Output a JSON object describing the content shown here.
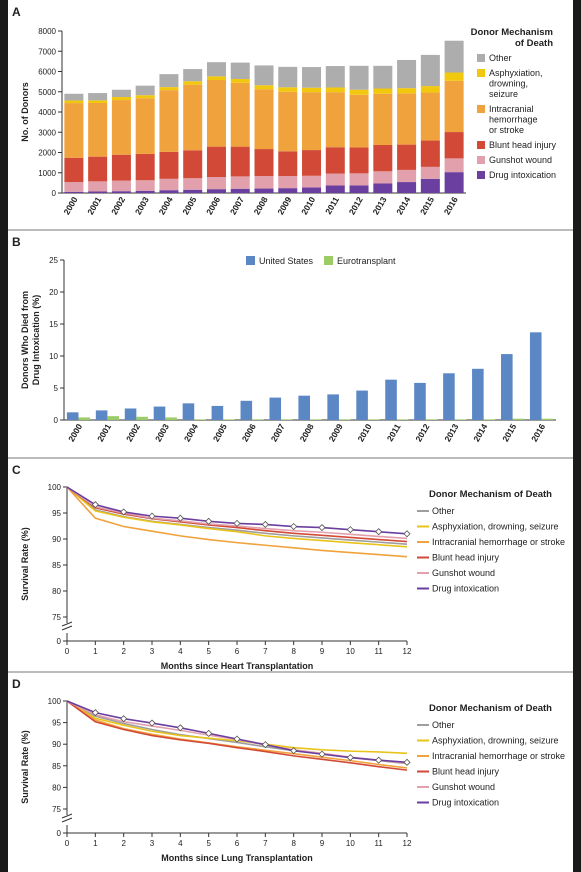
{
  "panels": {
    "a": {
      "letter": "A"
    },
    "b": {
      "letter": "B"
    },
    "c": {
      "letter": "C"
    },
    "d": {
      "letter": "D"
    }
  },
  "chart_data": [
    {
      "id": "A",
      "type": "bar",
      "stacked": true,
      "ylabel": "No. of Donors",
      "xlabel": "",
      "ylim": [
        0,
        8000
      ],
      "yticks": [
        0,
        1000,
        2000,
        3000,
        4000,
        5000,
        6000,
        7000,
        8000
      ],
      "legend_title": "Donor Mechanism of Death",
      "legend_position": "right",
      "categories": [
        "2000",
        "2001",
        "2002",
        "2003",
        "2004",
        "2005",
        "2006",
        "2007",
        "2008",
        "2009",
        "2010",
        "2011",
        "2012",
        "2013",
        "2014",
        "2015",
        "2016"
      ],
      "series": [
        {
          "name": "Drug intoxication",
          "color": "#6b3fa0",
          "values": [
            60,
            75,
            90,
            110,
            140,
            160,
            190,
            210,
            220,
            240,
            270,
            370,
            370,
            470,
            540,
            700,
            1030
          ]
        },
        {
          "name": "Gunshot wound",
          "color": "#e2a0ad",
          "values": [
            480,
            500,
            520,
            520,
            560,
            570,
            600,
            610,
            620,
            600,
            580,
            590,
            600,
            600,
            600,
            590,
            680
          ]
        },
        {
          "name": "Blunt head injury",
          "color": "#d24a37",
          "values": [
            1200,
            1220,
            1280,
            1300,
            1330,
            1380,
            1500,
            1470,
            1330,
            1220,
            1270,
            1300,
            1280,
            1300,
            1250,
            1300,
            1300
          ]
        },
        {
          "name": "Intracranial hemorrhage or stroke",
          "color": "#f0a23d",
          "values": [
            2700,
            2650,
            2700,
            2750,
            3050,
            3240,
            3290,
            3150,
            2950,
            2940,
            2860,
            2720,
            2600,
            2530,
            2530,
            2370,
            2530
          ]
        },
        {
          "name": "Asphyxiation, drowning, seizure",
          "color": "#f2c80f",
          "values": [
            130,
            130,
            150,
            150,
            150,
            170,
            180,
            190,
            200,
            220,
            220,
            230,
            250,
            260,
            260,
            320,
            410
          ]
        },
        {
          "name": "Other",
          "color": "#adadad",
          "values": [
            330,
            360,
            360,
            470,
            640,
            600,
            700,
            810,
            980,
            1010,
            1020,
            1060,
            1180,
            1120,
            1390,
            1540,
            1570
          ]
        }
      ],
      "legend_labels": [
        {
          "name": "Other",
          "color": "#adadad",
          "lines": [
            "Other"
          ]
        },
        {
          "name": "Asphyxiation, drowning, seizure",
          "color": "#f2c80f",
          "lines": [
            "Asphyxiation,",
            "drowning,",
            "seizure"
          ]
        },
        {
          "name": "Intracranial hemorrhage or stroke",
          "color": "#f0a23d",
          "lines": [
            "Intracranial",
            "hemorrhage",
            "or stroke"
          ]
        },
        {
          "name": "Blunt head injury",
          "color": "#d24a37",
          "lines": [
            "Blunt head injury"
          ]
        },
        {
          "name": "Gunshot wound",
          "color": "#e2a0ad",
          "lines": [
            "Gunshot wound"
          ]
        },
        {
          "name": "Drug intoxication",
          "color": "#6b3fa0",
          "lines": [
            "Drug intoxication"
          ]
        }
      ]
    },
    {
      "id": "B",
      "type": "bar",
      "grouped": true,
      "ylabel_lines": [
        "Donors Who Died from",
        "Drug Intoxication (%)"
      ],
      "ylim": [
        0,
        25
      ],
      "yticks": [
        0,
        5,
        10,
        15,
        20,
        25
      ],
      "legend_position": "top",
      "categories": [
        "2000",
        "2001",
        "2002",
        "2003",
        "2004",
        "2005",
        "2006",
        "2007",
        "2008",
        "2009",
        "2010",
        "2011",
        "2012",
        "2013",
        "2014",
        "2015",
        "2016"
      ],
      "series": [
        {
          "name": "United States",
          "color": "#5b87c5",
          "values": [
            1.2,
            1.5,
            1.8,
            2.1,
            2.6,
            2.2,
            3.0,
            3.5,
            3.8,
            4.0,
            4.6,
            6.3,
            5.8,
            7.3,
            8.0,
            10.3,
            13.7
          ]
        },
        {
          "name": "Eurotransplant",
          "color": "#9ccc65",
          "values": [
            0.4,
            0.6,
            0.5,
            0.4,
            0.1,
            0.1,
            0.1,
            0.1,
            0.1,
            0.1,
            0.1,
            0.1,
            0.1,
            0.1,
            0.1,
            0.2,
            0.2
          ]
        }
      ]
    },
    {
      "id": "C",
      "type": "line",
      "xlabel": "Months since Heart Transplantation",
      "ylabel": "Survival Rate (%)",
      "ylim": [
        0,
        100
      ],
      "yticks": [
        0,
        75,
        80,
        85,
        90,
        95,
        100
      ],
      "axis_break": true,
      "xlim": [
        0,
        12
      ],
      "xticks": [
        0,
        1,
        2,
        3,
        4,
        5,
        6,
        7,
        8,
        9,
        10,
        11,
        12
      ],
      "legend_title": "Donor Mechanism of Death",
      "legend_position": "right",
      "series": [
        {
          "name": "Other",
          "color": "#9e9e9e",
          "x": [
            0,
            1,
            2,
            3,
            4,
            5,
            6,
            7,
            8,
            9,
            10,
            11,
            12
          ],
          "values": [
            100,
            95.6,
            94.3,
            93.4,
            92.8,
            92.2,
            91.7,
            91.1,
            90.6,
            90.2,
            89.8,
            89.4,
            89.0
          ]
        },
        {
          "name": "Asphyxiation, drowning, seizure",
          "color": "#e8c31a",
          "x": [
            0,
            1,
            2,
            3,
            4,
            5,
            6,
            7,
            8,
            9,
            10,
            11,
            12
          ],
          "values": [
            100,
            95.4,
            94.2,
            93.3,
            92.7,
            92.0,
            91.4,
            90.6,
            90.1,
            89.7,
            89.3,
            88.9,
            88.5
          ]
        },
        {
          "name": "Intracranial hemorrhage or stroke",
          "color": "#f0a23d",
          "x": [
            0,
            1,
            2,
            3,
            4,
            5,
            6,
            7,
            8,
            9,
            10,
            11,
            12
          ],
          "values": [
            100,
            94.0,
            92.4,
            91.5,
            90.6,
            89.9,
            89.3,
            88.8,
            88.3,
            87.8,
            87.4,
            87.0,
            86.6
          ]
        },
        {
          "name": "Blunt head injury",
          "color": "#d24a37",
          "x": [
            0,
            1,
            2,
            3,
            4,
            5,
            6,
            7,
            8,
            9,
            10,
            11,
            12
          ],
          "values": [
            100,
            96.0,
            94.8,
            93.9,
            93.3,
            92.7,
            92.2,
            91.6,
            91.1,
            90.7,
            90.3,
            89.9,
            89.5
          ]
        },
        {
          "name": "Gunshot wound",
          "color": "#e2a0ad",
          "x": [
            0,
            1,
            2,
            3,
            4,
            5,
            6,
            7,
            8,
            9,
            10,
            11,
            12
          ],
          "values": [
            100,
            96.2,
            95.0,
            94.0,
            93.5,
            92.9,
            92.5,
            92.0,
            91.6,
            91.3,
            90.9,
            90.5,
            90.1
          ]
        },
        {
          "name": "Drug intoxication",
          "color": "#6b3fa0",
          "x": [
            0,
            1,
            2,
            3,
            4,
            5,
            6,
            7,
            8,
            9,
            10,
            11,
            12
          ],
          "values": [
            100,
            96.6,
            95.2,
            94.4,
            94.0,
            93.4,
            93.0,
            92.8,
            92.4,
            92.2,
            91.8,
            91.4,
            91.0
          ]
        }
      ]
    },
    {
      "id": "D",
      "type": "line",
      "xlabel": "Months since Lung Transplantation",
      "ylabel": "Survival Rate (%)",
      "ylim": [
        0,
        100
      ],
      "yticks": [
        0,
        75,
        80,
        85,
        90,
        95,
        100
      ],
      "axis_break": true,
      "xlim": [
        0,
        12
      ],
      "xticks": [
        0,
        1,
        2,
        3,
        4,
        5,
        6,
        7,
        8,
        9,
        10,
        11,
        12
      ],
      "legend_title": "Donor Mechanism of Death",
      "legend_position": "right",
      "series": [
        {
          "name": "Other",
          "color": "#9e9e9e",
          "x": [
            0,
            1,
            2,
            3,
            4,
            5,
            6,
            7,
            8,
            9,
            10,
            11,
            12
          ],
          "values": [
            100,
            96.5,
            94.8,
            93.4,
            92.2,
            91.3,
            90.4,
            89.4,
            88.5,
            87.7,
            86.9,
            86.2,
            85.5
          ]
        },
        {
          "name": "Asphyxiation, drowning, seizure",
          "color": "#e8c31a",
          "x": [
            0,
            1,
            2,
            3,
            4,
            5,
            6,
            7,
            8,
            9,
            10,
            11,
            12
          ],
          "values": [
            100,
            96.0,
            94.4,
            93.0,
            92.0,
            91.4,
            90.8,
            90.0,
            89.2,
            88.7,
            88.4,
            88.2,
            87.9
          ]
        },
        {
          "name": "Intracranial hemorrhage or stroke",
          "color": "#f0a23d",
          "x": [
            0,
            1,
            2,
            3,
            4,
            5,
            6,
            7,
            8,
            9,
            10,
            11,
            12
          ],
          "values": [
            100,
            95.6,
            93.6,
            92.3,
            91.2,
            90.3,
            89.4,
            88.6,
            87.8,
            87.0,
            86.2,
            85.3,
            84.5
          ]
        },
        {
          "name": "Blunt head injury",
          "color": "#d24a37",
          "x": [
            0,
            1,
            2,
            3,
            4,
            5,
            6,
            7,
            8,
            9,
            10,
            11,
            12
          ],
          "values": [
            100,
            95.2,
            93.4,
            92.0,
            91.0,
            90.2,
            89.2,
            88.3,
            87.3,
            86.5,
            85.7,
            84.8,
            84.0
          ]
        },
        {
          "name": "Gunshot wound",
          "color": "#e2a0ad",
          "x": [
            0,
            1,
            2,
            3,
            4,
            5,
            6,
            7,
            8,
            9,
            10,
            11,
            12
          ],
          "values": [
            100,
            96.8,
            95.2,
            94.2,
            93.2,
            92.1,
            91.1,
            89.8,
            88.7,
            87.9,
            87.0,
            86.3,
            85.6
          ]
        },
        {
          "name": "Drug intoxication",
          "color": "#6b3fa0",
          "x": [
            0,
            1,
            2,
            3,
            4,
            5,
            6,
            7,
            8,
            9,
            10,
            11,
            12
          ],
          "values": [
            100,
            97.3,
            95.9,
            94.9,
            93.8,
            92.5,
            91.2,
            89.9,
            88.5,
            87.7,
            86.9,
            86.3,
            85.8
          ]
        }
      ]
    }
  ]
}
